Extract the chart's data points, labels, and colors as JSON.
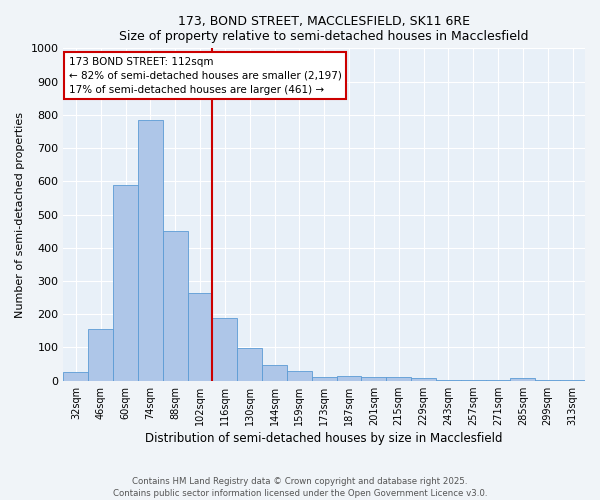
{
  "title1": "173, BOND STREET, MACCLESFIELD, SK11 6RE",
  "title2": "Size of property relative to semi-detached houses in Macclesfield",
  "xlabel": "Distribution of semi-detached houses by size in Macclesfield",
  "ylabel": "Number of semi-detached properties",
  "categories": [
    "32sqm",
    "46sqm",
    "60sqm",
    "74sqm",
    "88sqm",
    "102sqm",
    "116sqm",
    "130sqm",
    "144sqm",
    "159sqm",
    "173sqm",
    "187sqm",
    "201sqm",
    "215sqm",
    "229sqm",
    "243sqm",
    "257sqm",
    "271sqm",
    "285sqm",
    "299sqm",
    "313sqm"
  ],
  "values": [
    25,
    155,
    590,
    785,
    450,
    265,
    190,
    97,
    47,
    28,
    12,
    15,
    12,
    10,
    8,
    3,
    3,
    2,
    8,
    2,
    2
  ],
  "bar_color": "#aec6e8",
  "bar_edge_color": "#5b9bd5",
  "property_line_idx": 5.5,
  "annotation_text1": "173 BOND STREET: 112sqm",
  "annotation_text2": "← 82% of semi-detached houses are smaller (2,197)",
  "annotation_text3": "17% of semi-detached houses are larger (461) →",
  "box_facecolor": "#ffffff",
  "box_edgecolor": "#cc0000",
  "line_color": "#cc0000",
  "ylim": [
    0,
    1000
  ],
  "yticks": [
    0,
    100,
    200,
    300,
    400,
    500,
    600,
    700,
    800,
    900,
    1000
  ],
  "footer1": "Contains HM Land Registry data © Crown copyright and database right 2025.",
  "footer2": "Contains public sector information licensed under the Open Government Licence v3.0.",
  "plot_bg_color": "#e8f0f8",
  "fig_bg_color": "#f0f4f8"
}
